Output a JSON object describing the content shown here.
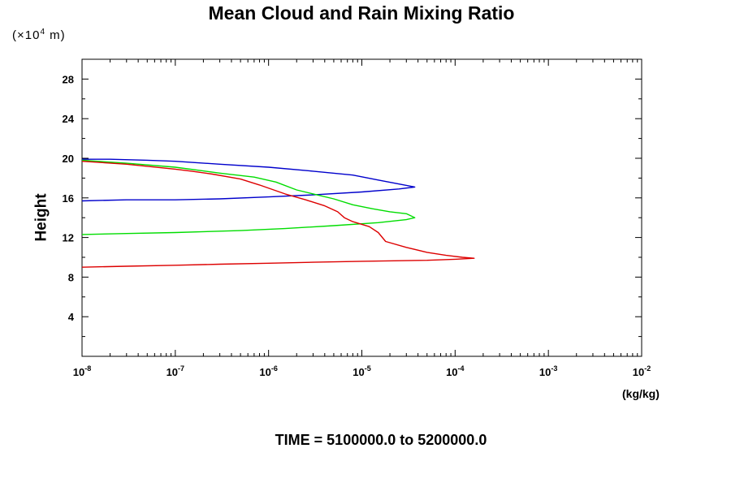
{
  "chart_data": {
    "type": "line",
    "title": "Mean Cloud and Rain Mixing Ratio",
    "y_unit_label": {
      "prefix": "(×10",
      "exp": "4",
      "suffix": " m)"
    },
    "ylabel": "Height",
    "xlabel": "(kg/kg)",
    "footer": "TIME = 5100000.0 to 5200000.0",
    "xscale": "log",
    "xlim": [
      1e-08,
      0.01
    ],
    "ylim": [
      0,
      30
    ],
    "x_ticks": [
      {
        "base": "10",
        "exp": "-8",
        "value": -8
      },
      {
        "base": "10",
        "exp": "-7",
        "value": -7
      },
      {
        "base": "10",
        "exp": "-6",
        "value": -6
      },
      {
        "base": "10",
        "exp": "-5",
        "value": -5
      },
      {
        "base": "10",
        "exp": "-4",
        "value": -4
      },
      {
        "base": "10",
        "exp": "-3",
        "value": -3
      },
      {
        "base": "10",
        "exp": "-2",
        "value": -2
      }
    ],
    "y_ticks": [
      "4",
      "8",
      "12",
      "16",
      "20",
      "24",
      "28"
    ],
    "grid": false,
    "series": [
      {
        "color": "#0000cc",
        "points": [
          [
            1e-08,
            19.9
          ],
          [
            2e-08,
            19.9
          ],
          [
            5e-08,
            19.8
          ],
          [
            1e-07,
            19.7
          ],
          [
            3e-07,
            19.4
          ],
          [
            1e-06,
            19.1
          ],
          [
            3e-06,
            18.7
          ],
          [
            8e-06,
            18.3
          ],
          [
            1.5e-05,
            17.8
          ],
          [
            2.5e-05,
            17.4
          ],
          [
            3.7e-05,
            17.1
          ],
          [
            2.5e-05,
            16.9
          ],
          [
            1e-05,
            16.6
          ],
          [
            3e-06,
            16.3
          ],
          [
            1e-06,
            16.1
          ],
          [
            3e-07,
            15.9
          ],
          [
            1e-07,
            15.8
          ],
          [
            3e-08,
            15.8
          ],
          [
            1e-08,
            15.7
          ]
        ]
      },
      {
        "color": "#00dd00",
        "points": [
          [
            1e-08,
            19.8
          ],
          [
            3e-08,
            19.5
          ],
          [
            1e-07,
            19.1
          ],
          [
            3e-07,
            18.5
          ],
          [
            7e-07,
            18.1
          ],
          [
            1.2e-06,
            17.6
          ],
          [
            2e-06,
            16.8
          ],
          [
            3e-06,
            16.4
          ],
          [
            5e-06,
            15.9
          ],
          [
            8e-06,
            15.3
          ],
          [
            1.3e-05,
            14.9
          ],
          [
            2e-05,
            14.6
          ],
          [
            3e-05,
            14.4
          ],
          [
            3.7e-05,
            14.0
          ],
          [
            3e-05,
            13.8
          ],
          [
            1.5e-05,
            13.5
          ],
          [
            5e-06,
            13.2
          ],
          [
            1.5e-06,
            12.9
          ],
          [
            5e-07,
            12.7
          ],
          [
            1e-07,
            12.5
          ],
          [
            3e-08,
            12.4
          ],
          [
            1e-08,
            12.3
          ]
        ]
      },
      {
        "color": "#dd0000",
        "points": [
          [
            1e-08,
            19.7
          ],
          [
            3e-08,
            19.4
          ],
          [
            1e-07,
            18.9
          ],
          [
            1.5e-07,
            18.7
          ],
          [
            2.5e-07,
            18.4
          ],
          [
            5e-07,
            17.9
          ],
          [
            8e-07,
            17.3
          ],
          [
            1.5e-06,
            16.4
          ],
          [
            2.5e-06,
            15.8
          ],
          [
            4e-06,
            15.2
          ],
          [
            5.5e-06,
            14.6
          ],
          [
            6.5e-06,
            14.0
          ],
          [
            8e-06,
            13.6
          ],
          [
            1.2e-05,
            13.1
          ],
          [
            1.5e-05,
            12.5
          ],
          [
            1.8e-05,
            11.6
          ],
          [
            3e-05,
            11.0
          ],
          [
            5e-05,
            10.5
          ],
          [
            8e-05,
            10.2
          ],
          [
            0.00012,
            10.0
          ],
          [
            0.00016,
            9.9
          ],
          [
            0.0001,
            9.8
          ],
          [
            5e-05,
            9.7
          ],
          [
            1e-05,
            9.6
          ],
          [
            3e-06,
            9.5
          ],
          [
            1e-06,
            9.4
          ],
          [
            3e-07,
            9.3
          ],
          [
            1e-07,
            9.2
          ],
          [
            3e-08,
            9.1
          ],
          [
            1e-08,
            9.0
          ]
        ]
      }
    ]
  }
}
